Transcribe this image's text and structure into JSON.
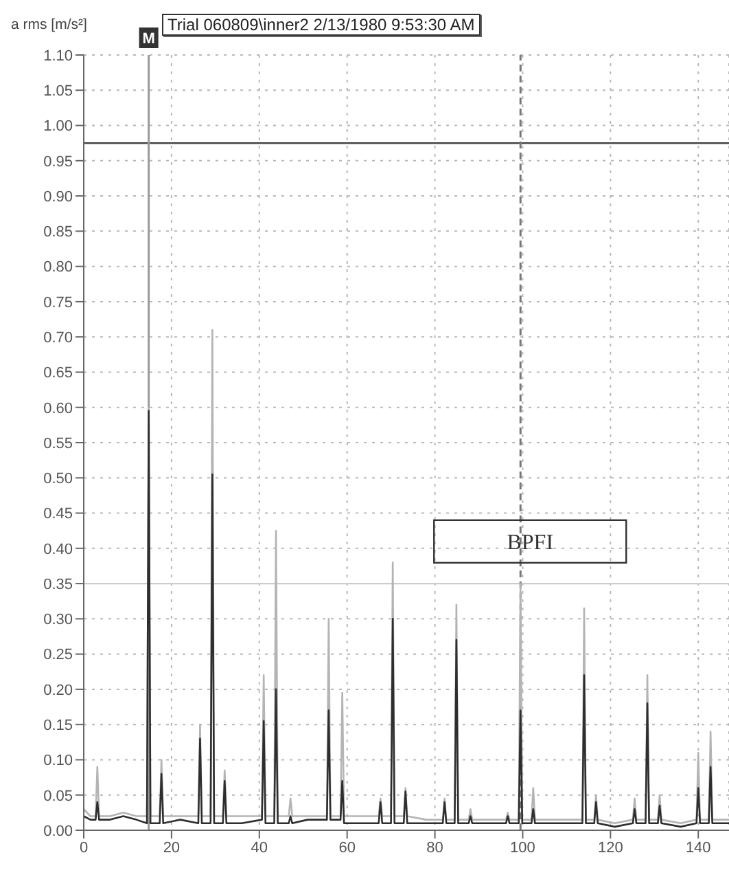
{
  "chart_data": {
    "type": "line",
    "title": "Trial 060809\\inner2 2/13/1980 9:53:30 AM",
    "ylabel": "a rms [m/s²]",
    "x": [
      0,
      1.5,
      2.7,
      3.1,
      3.5,
      6,
      9,
      12,
      14.4,
      14.8,
      15.2,
      17.3,
      17.7,
      18.1,
      22,
      26.1,
      26.5,
      26.9,
      28.9,
      29.3,
      29.7,
      31.7,
      32.1,
      32.5,
      36,
      40.6,
      41.0,
      41.4,
      43.4,
      43.8,
      44.2,
      46.7,
      47.1,
      47.5,
      51,
      55.4,
      55.8,
      56.2,
      58.5,
      58.9,
      59.3,
      63,
      67.2,
      67.6,
      68.0,
      70.0,
      70.4,
      70.8,
      72.9,
      73.3,
      73.7,
      78,
      81.8,
      82.2,
      82.6,
      84.5,
      84.9,
      85.3,
      87.7,
      88.1,
      88.5,
      92,
      96.2,
      96.6,
      97.0,
      99.1,
      99.5,
      99.9,
      102.0,
      102.4,
      102.8,
      108,
      113.6,
      114.0,
      114.4,
      116.3,
      116.7,
      117.1,
      121,
      125.1,
      125.5,
      125.9,
      128.0,
      128.4,
      128.8,
      130.8,
      131.2,
      131.6,
      136,
      139.6,
      140.0,
      140.4,
      142.4,
      142.8,
      143.2,
      147
    ],
    "series": [
      {
        "color": "#b4b4b4",
        "values": [
          0.03,
          0.02,
          0.02,
          0.09,
          0.02,
          0.02,
          0.025,
          0.02,
          0.02,
          0.6,
          0.02,
          0.02,
          0.1,
          0.02,
          0.02,
          0.02,
          0.15,
          0.02,
          0.02,
          0.71,
          0.02,
          0.02,
          0.085,
          0.02,
          0.02,
          0.02,
          0.22,
          0.02,
          0.02,
          0.425,
          0.02,
          0.02,
          0.045,
          0.02,
          0.02,
          0.02,
          0.3,
          0.02,
          0.02,
          0.195,
          0.02,
          0.02,
          0.02,
          0.045,
          0.02,
          0.02,
          0.38,
          0.02,
          0.02,
          0.06,
          0.02,
          0.015,
          0.015,
          0.045,
          0.015,
          0.015,
          0.32,
          0.015,
          0.015,
          0.03,
          0.015,
          0.015,
          0.015,
          0.025,
          0.015,
          0.015,
          0.35,
          0.015,
          0.015,
          0.06,
          0.015,
          0.015,
          0.015,
          0.315,
          0.015,
          0.015,
          0.05,
          0.015,
          0.01,
          0.015,
          0.045,
          0.015,
          0.015,
          0.22,
          0.015,
          0.015,
          0.05,
          0.015,
          0.01,
          0.015,
          0.11,
          0.015,
          0.015,
          0.14,
          0.015,
          0.015
        ]
      },
      {
        "color": "#2e2e2e",
        "values": [
          0.02,
          0.015,
          0.015,
          0.04,
          0.015,
          0.015,
          0.02,
          0.015,
          0.01,
          0.595,
          0.01,
          0.01,
          0.08,
          0.01,
          0.015,
          0.01,
          0.13,
          0.01,
          0.01,
          0.505,
          0.01,
          0.01,
          0.07,
          0.01,
          0.01,
          0.015,
          0.155,
          0.01,
          0.01,
          0.2,
          0.01,
          0.01,
          0.02,
          0.01,
          0.015,
          0.015,
          0.17,
          0.015,
          0.015,
          0.07,
          0.01,
          0.01,
          0.01,
          0.04,
          0.01,
          0.01,
          0.3,
          0.01,
          0.01,
          0.055,
          0.01,
          0.01,
          0.01,
          0.04,
          0.01,
          0.01,
          0.27,
          0.01,
          0.01,
          0.02,
          0.01,
          0.01,
          0.01,
          0.02,
          0.01,
          0.01,
          0.17,
          0.01,
          0.01,
          0.03,
          0.01,
          0.01,
          0.01,
          0.22,
          0.01,
          0.01,
          0.04,
          0.01,
          0.005,
          0.01,
          0.03,
          0.01,
          0.01,
          0.18,
          0.01,
          0.01,
          0.035,
          0.01,
          0.005,
          0.01,
          0.06,
          0.01,
          0.01,
          0.09,
          0.01,
          0.01
        ]
      }
    ],
    "xlim": [
      0,
      147
    ],
    "xticks": [
      0,
      20,
      40,
      60,
      80,
      100,
      120,
      140
    ],
    "ylim": [
      0,
      1.1
    ],
    "yticks": [
      {
        "value": 0,
        "label": "0.00"
      },
      {
        "value": 0.05,
        "label": "0.05"
      },
      {
        "value": 0.1,
        "label": "0.10"
      },
      {
        "value": 0.15,
        "label": "0.15"
      },
      {
        "value": 0.2,
        "label": "0.20"
      },
      {
        "value": 0.25,
        "label": "0.25"
      },
      {
        "value": 0.3,
        "label": "0.30"
      },
      {
        "value": 0.35,
        "label": "0.35"
      },
      {
        "value": 0.4,
        "label": "0.40"
      },
      {
        "value": 0.45,
        "label": "0.45"
      },
      {
        "value": 0.5,
        "label": "0.50"
      },
      {
        "value": 0.55,
        "label": "0.55"
      },
      {
        "value": 0.6,
        "label": "0.60"
      },
      {
        "value": 0.65,
        "label": "0.65"
      },
      {
        "value": 0.7,
        "label": "0.70"
      },
      {
        "value": 0.75,
        "label": "0.75"
      },
      {
        "value": 0.8,
        "label": "0.80"
      },
      {
        "value": 0.85,
        "label": "0.85"
      },
      {
        "value": 0.9,
        "label": "0.90"
      },
      {
        "value": 0.95,
        "label": "0.95"
      },
      {
        "value": 1.0,
        "label": "1.00"
      },
      {
        "value": 1.05,
        "label": "1.05"
      },
      {
        "value": 1.1,
        "label": "1.10"
      }
    ],
    "ref_lines": [
      {
        "axis": "y",
        "value": 0.975,
        "color": "#444444"
      },
      {
        "axis": "y",
        "value": 0.35,
        "color": "#cccccc"
      },
      {
        "axis": "x",
        "value": 14.8,
        "label": "M",
        "color": "#9a9a9a"
      },
      {
        "axis": "x",
        "value": 99.5,
        "label": "BPFI",
        "color": "#777777",
        "line_style": "dashed"
      }
    ],
    "grid": true,
    "marker": "none",
    "line_style": "solid"
  }
}
